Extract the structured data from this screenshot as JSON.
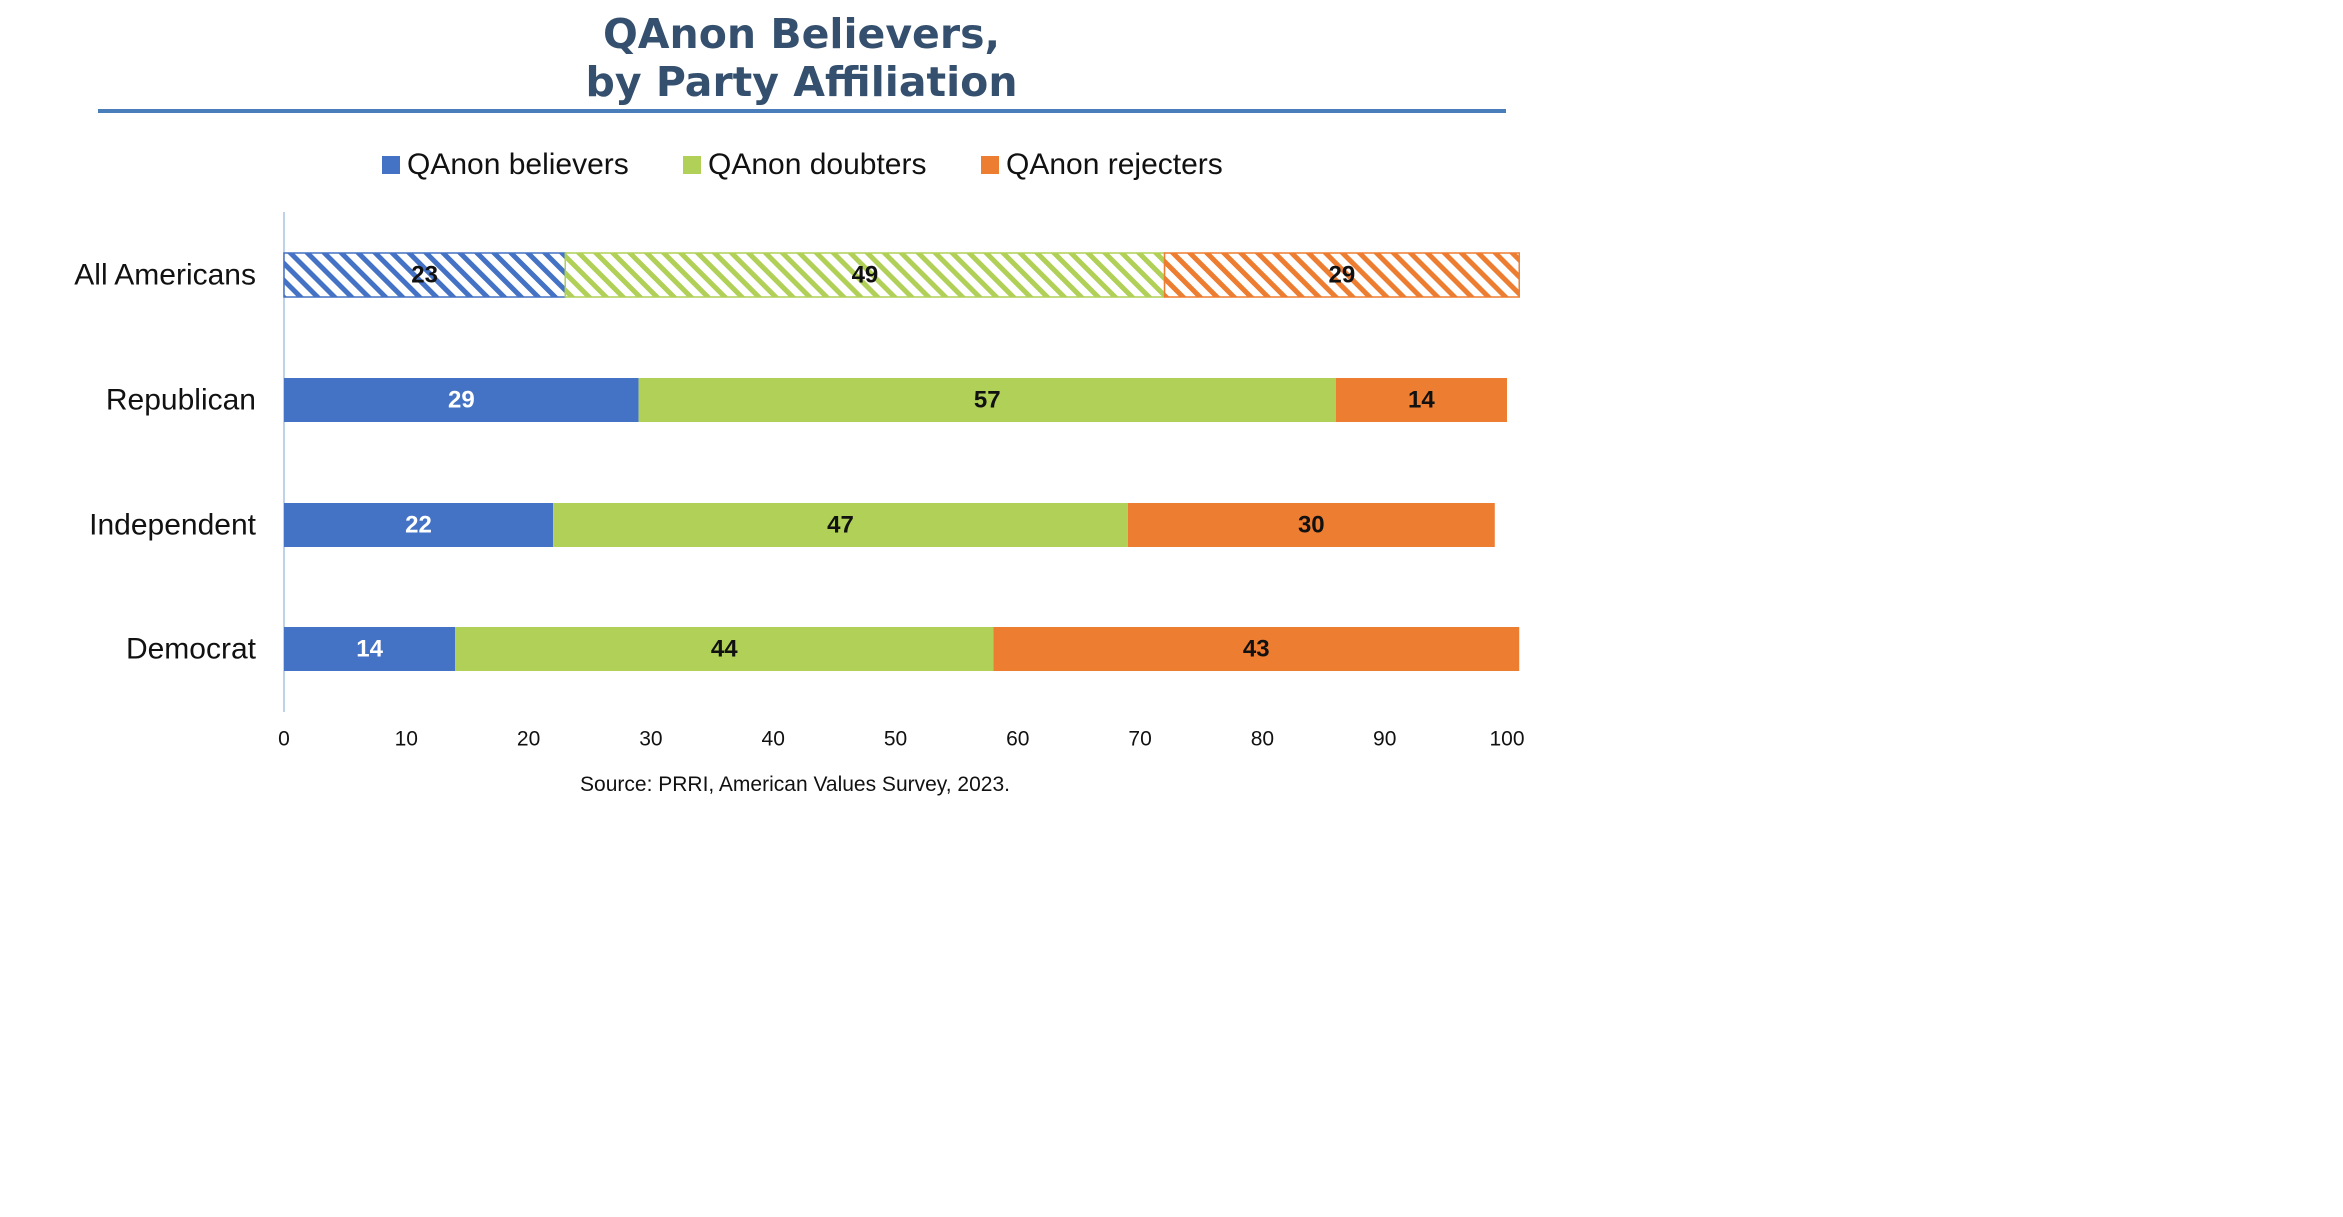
{
  "title_lines": [
    "QAnon Believers,",
    "by Party Affiliation"
  ],
  "source": "Source: PRRI, American Values Survey, 2023.",
  "chart_data": {
    "type": "bar",
    "orientation": "horizontal",
    "stacked": true,
    "categories": [
      "All Americans",
      "Republican",
      "Independent",
      "Democrat"
    ],
    "series": [
      {
        "name": "QAnon believers",
        "color": "#4472c4",
        "values": [
          23,
          29,
          22,
          14
        ]
      },
      {
        "name": "QAnon doubters",
        "color": "#b0d057",
        "values": [
          49,
          57,
          47,
          44
        ]
      },
      {
        "name": "QAnon rejecters",
        "color": "#ed7d31",
        "values": [
          29,
          14,
          30,
          43
        ]
      }
    ],
    "hatched_categories": [
      "All Americans"
    ],
    "data_label_colors": {
      "QAnon believers": [
        "#111111",
        "#ffffff",
        "#ffffff",
        "#ffffff"
      ]
    },
    "xlim": [
      0,
      100
    ],
    "xticks": [
      0,
      10,
      20,
      30,
      40,
      50,
      60,
      70,
      80,
      90,
      100
    ],
    "grid": false,
    "legend_position": "top"
  }
}
